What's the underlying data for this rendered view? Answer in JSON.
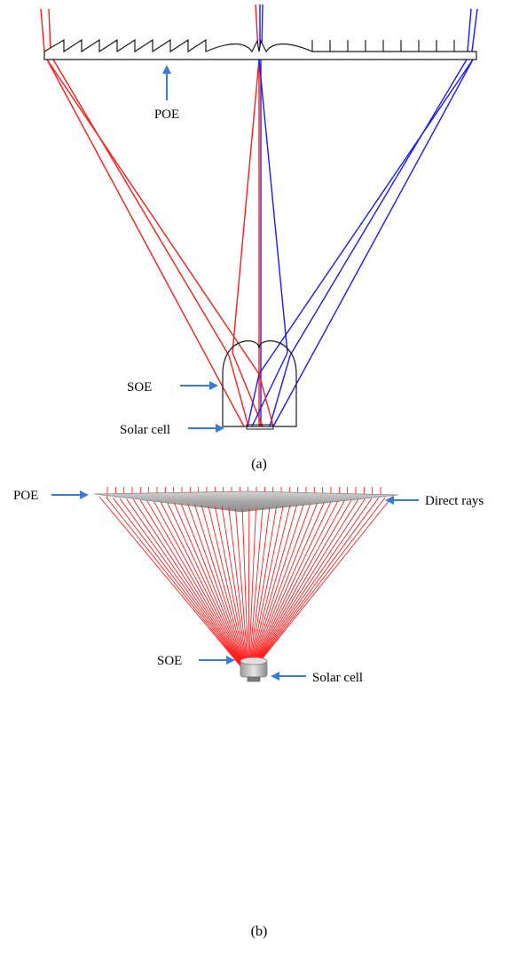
{
  "panel_a": {
    "caption": "(a)",
    "labels": {
      "poe": "POE",
      "soe": "SOE",
      "solar_cell": "Solar cell"
    }
  },
  "panel_b": {
    "caption": "(b)",
    "labels": {
      "direct_rays": "Direct rays",
      "poe": "POE",
      "soe": "SOE",
      "solar_cell": "Solar cell"
    }
  },
  "colors": {
    "ray_red": "#ff1a1a",
    "ray_blue": "#1a1aff",
    "arrow_blue": "#3a7bd5",
    "outline": "#1a1a1a",
    "plate_gray": "#b0b0b0"
  }
}
